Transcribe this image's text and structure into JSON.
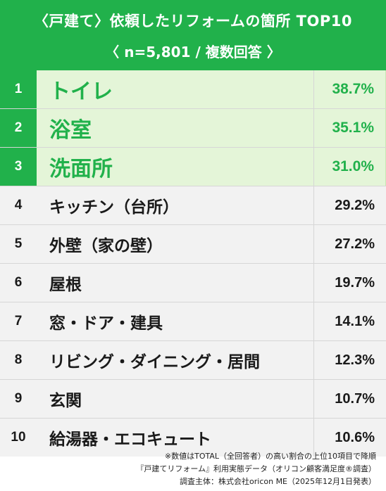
{
  "header": {
    "title": "〈戸建て〉依頼したリフォームの箇所 TOP10",
    "subtitle": "〈 n=5,801 / 複数回答 〉"
  },
  "chart_data": {
    "type": "table",
    "columns": [
      "rank",
      "item",
      "percent"
    ],
    "unit": "%",
    "rows": [
      {
        "rank": "1",
        "item": "トイレ",
        "value": 38.7,
        "value_label": "38.7%"
      },
      {
        "rank": "2",
        "item": "浴室",
        "value": 35.1,
        "value_label": "35.1%"
      },
      {
        "rank": "3",
        "item": "洗面所",
        "value": 31.0,
        "value_label": "31.0%"
      },
      {
        "rank": "4",
        "item": "キッチン（台所）",
        "value": 29.2,
        "value_label": "29.2%"
      },
      {
        "rank": "5",
        "item": "外壁（家の壁）",
        "value": 27.2,
        "value_label": "27.2%"
      },
      {
        "rank": "6",
        "item": "屋根",
        "value": 19.7,
        "value_label": "19.7%"
      },
      {
        "rank": "7",
        "item": "窓・ドア・建具",
        "value": 14.1,
        "value_label": "14.1%"
      },
      {
        "rank": "8",
        "item": "リビング・ダイニング・居間",
        "value": 12.3,
        "value_label": "12.3%"
      },
      {
        "rank": "9",
        "item": "玄関",
        "value": 10.7,
        "value_label": "10.7%"
      },
      {
        "rank": "10",
        "item": "給湯器・エコキュート",
        "value": 10.6,
        "value_label": "10.6%"
      }
    ],
    "highlight_top": 3,
    "colors": {
      "accent": "#21b14b",
      "highlight_bg": "#e4f5d8",
      "row_bg": "#f2f2f2"
    }
  },
  "footer": {
    "line1": "※数値はTOTAL（全回答者）の高い割合の上位10項目で降順",
    "line2": "『戸建てリフォーム』利用実態データ（オリコン顧客満足度®調査）",
    "line3": "調査主体：株式会社oricon ME（2025年12月1日発表）"
  }
}
